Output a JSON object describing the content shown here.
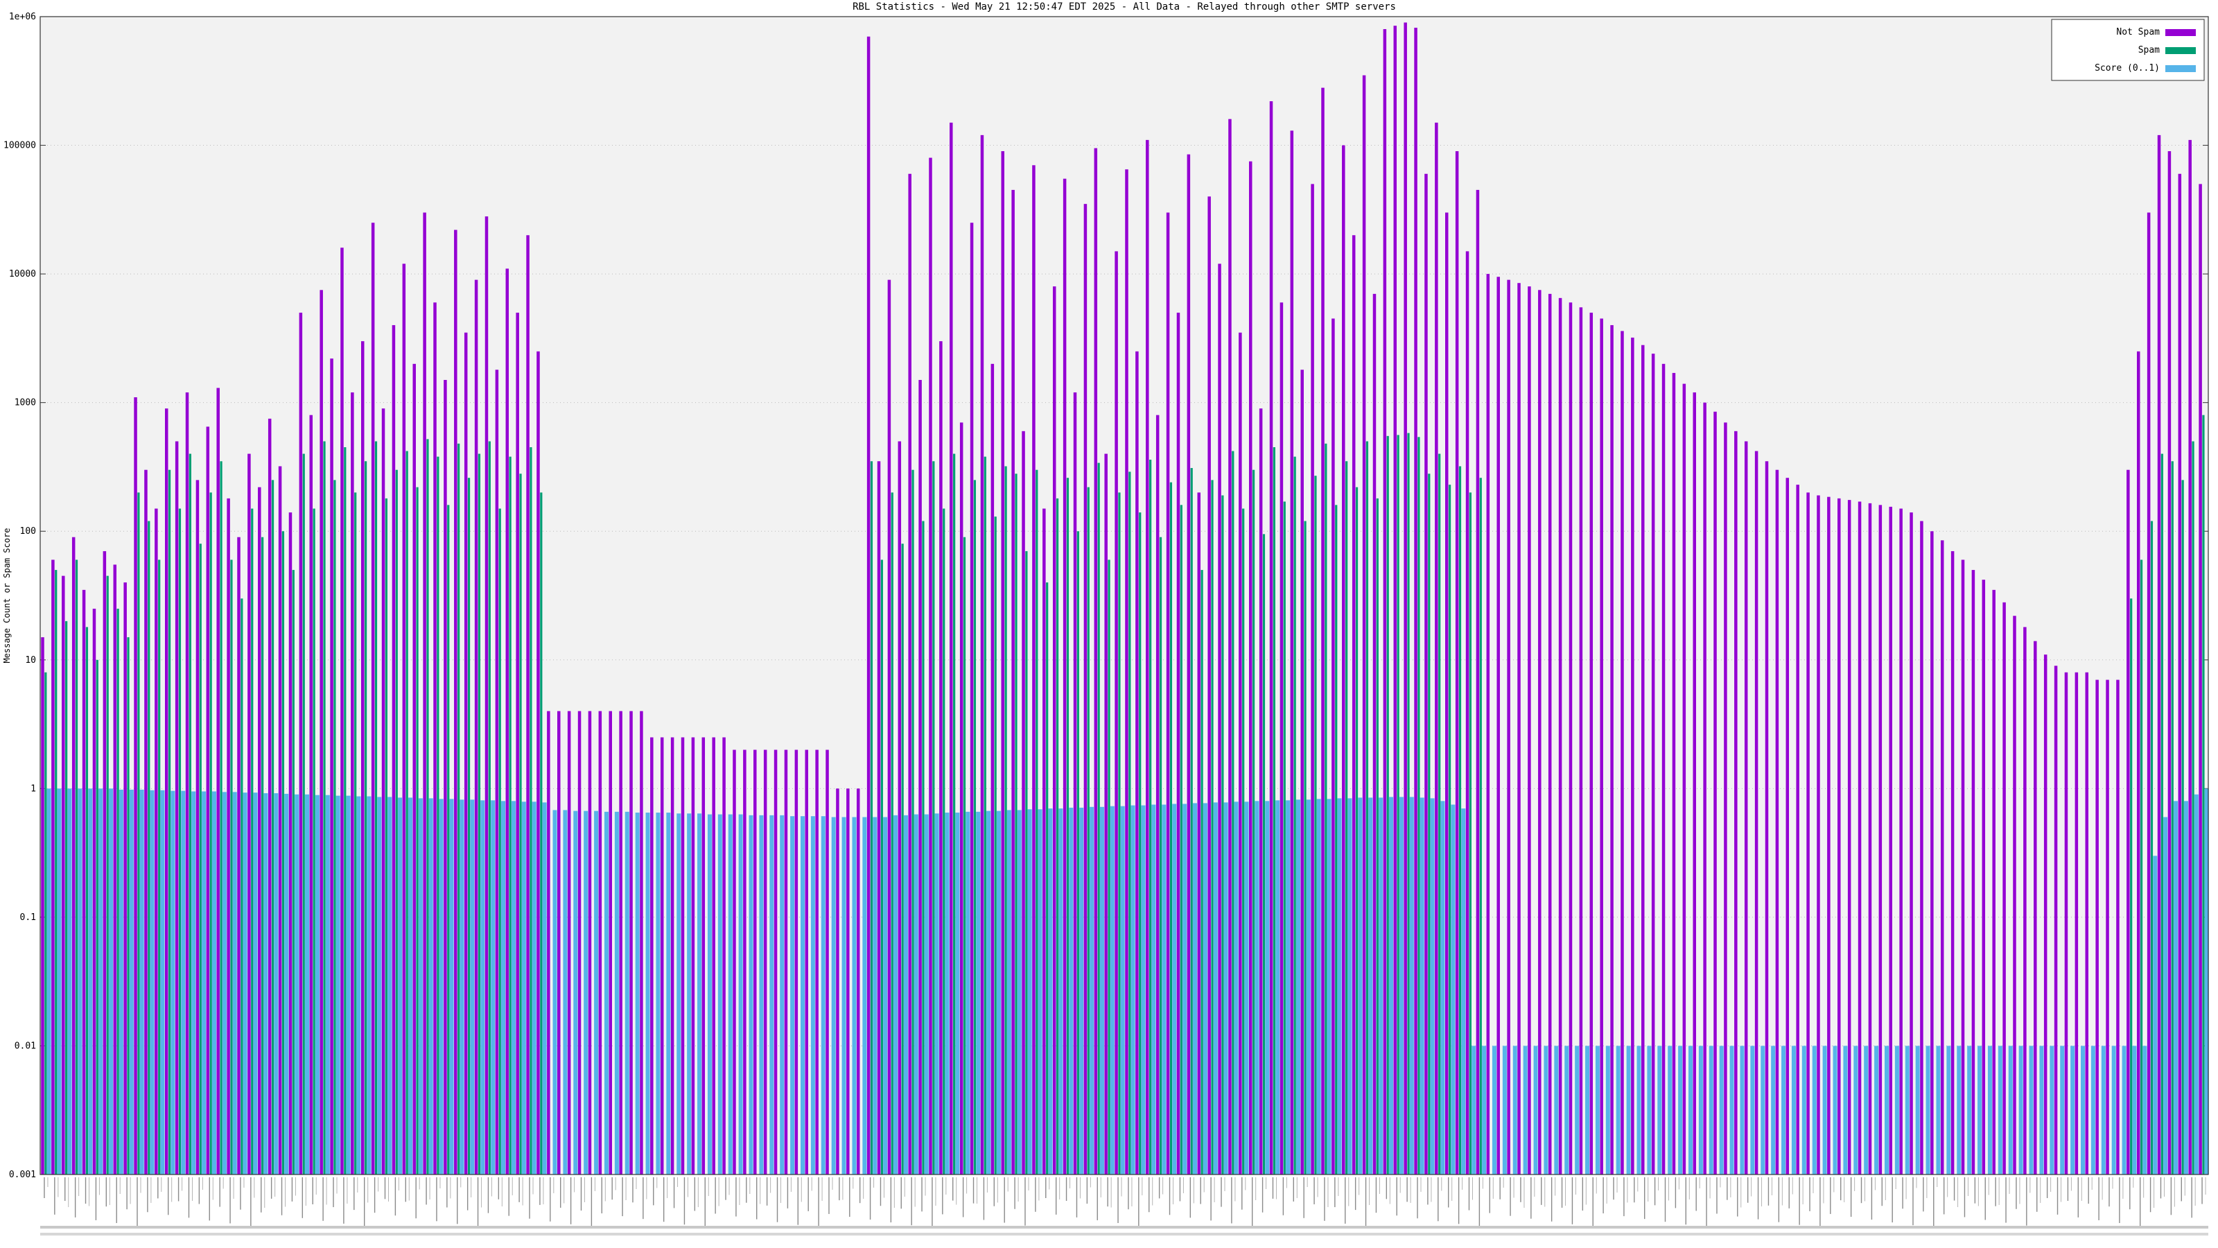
{
  "header": {
    "title": "RBL Statistics - Wed May 21 12:50:47 EDT 2025 - All Data - Relayed through other SMTP servers"
  },
  "chart_data": {
    "type": "bar",
    "title": "RBL Statistics - Wed May 21 12:50:47 EDT 2025 - All Data - Relayed through other SMTP servers",
    "ylabel": "Message Count or Spam Score",
    "xlabel": "",
    "yscale": "log",
    "ylim": [
      0.001,
      1000000
    ],
    "ytick_labels": [
      "0.001",
      "0.01",
      "0.1",
      "1",
      "10",
      "100",
      "1000",
      "10000",
      "100000",
      "1e+06"
    ],
    "grid": true,
    "legend_position": "top-right",
    "legend": [
      {
        "name": "Not Spam",
        "color": "#9400d3"
      },
      {
        "name": "Spam",
        "color": "#009e73"
      },
      {
        "name": "Score (0..1)",
        "color": "#56b4e9"
      }
    ],
    "plot_bg": "#f2f2f2",
    "grid_color": "#bbbbbb",
    "border_color": "#333333",
    "series": [
      {
        "name": "Not Spam",
        "values": [
          15,
          60,
          45,
          90,
          35,
          25,
          70,
          55,
          40,
          1100,
          300,
          150,
          900,
          500,
          1200,
          250,
          650,
          1300,
          180,
          90,
          400,
          220,
          750,
          320,
          140,
          5000,
          800,
          7500,
          2200,
          16000,
          1200,
          3000,
          25000,
          900,
          4000,
          12000,
          2000,
          30000,
          6000,
          1500,
          22000,
          3500,
          9000,
          28000,
          1800,
          11000,
          5000,
          20000,
          2500,
          4,
          4,
          4,
          4,
          4,
          4,
          4,
          4,
          4,
          4,
          2.5,
          2.5,
          2.5,
          2.5,
          2.5,
          2.5,
          2.5,
          2.5,
          2,
          2,
          2,
          2,
          2,
          2,
          2,
          2,
          2,
          2,
          1,
          1,
          1,
          700000,
          350,
          9000,
          500,
          60000,
          1500,
          80000,
          3000,
          150000,
          700,
          25000,
          120000,
          2000,
          90000,
          45000,
          600,
          70000,
          150,
          8000,
          55000,
          1200,
          35000,
          95000,
          400,
          15000,
          65000,
          2500,
          110000,
          800,
          30000,
          5000,
          85000,
          200,
          40000,
          12000,
          160000,
          3500,
          75000,
          900,
          220000,
          6000,
          130000,
          1800,
          50000,
          280000,
          4500,
          100000,
          20000,
          350000,
          7000,
          800000,
          850000,
          900000,
          820000,
          60000,
          150000,
          30000,
          90000,
          15000,
          45000,
          10000,
          9500,
          9000,
          8500,
          8000,
          7500,
          7000,
          6500,
          6000,
          5500,
          5000,
          4500,
          4000,
          3600,
          3200,
          2800,
          2400,
          2000,
          1700,
          1400,
          1200,
          1000,
          850,
          700,
          600,
          500,
          420,
          350,
          300,
          260,
          230,
          200,
          190,
          185,
          180,
          175,
          170,
          165,
          160,
          155,
          150,
          140,
          120,
          100,
          85,
          70,
          60,
          50,
          42,
          35,
          28,
          22,
          18,
          14,
          11,
          9,
          8,
          8,
          8,
          7,
          7,
          7,
          300,
          2500,
          30000,
          120000,
          90000,
          60000,
          110000,
          50000
        ]
      },
      {
        "name": "Spam",
        "values": [
          8,
          50,
          20,
          60,
          18,
          10,
          45,
          25,
          15,
          200,
          120,
          60,
          300,
          150,
          400,
          80,
          200,
          350,
          60,
          30,
          150,
          90,
          250,
          100,
          50,
          400,
          150,
          500,
          250,
          450,
          200,
          350,
          500,
          180,
          300,
          420,
          220,
          520,
          380,
          160,
          480,
          260,
          400,
          500,
          150,
          380,
          280,
          450,
          200,
          0,
          0,
          0,
          0,
          0,
          0,
          0,
          0,
          0,
          0,
          0,
          0,
          0,
          0,
          0,
          0,
          0,
          0,
          0,
          0,
          0,
          0,
          0,
          0,
          0,
          0,
          0,
          0,
          0,
          0,
          0,
          350,
          60,
          200,
          80,
          300,
          120,
          350,
          150,
          400,
          90,
          250,
          380,
          130,
          320,
          280,
          70,
          300,
          40,
          180,
          260,
          100,
          220,
          340,
          60,
          200,
          290,
          140,
          360,
          90,
          240,
          160,
          310,
          50,
          250,
          190,
          420,
          150,
          300,
          95,
          450,
          170,
          380,
          120,
          270,
          480,
          160,
          350,
          220,
          500,
          180,
          550,
          560,
          580,
          540,
          280,
          400,
          230,
          320,
          200,
          260,
          0,
          0,
          0,
          0,
          0,
          0,
          0,
          0,
          0,
          0,
          0,
          0,
          0,
          0,
          0,
          0,
          0,
          0,
          0,
          0,
          0,
          0,
          0,
          0,
          0,
          0,
          0,
          0,
          0,
          0,
          0,
          0,
          0,
          0,
          0,
          0,
          0,
          0,
          0,
          0,
          0,
          0,
          0,
          0,
          0,
          0,
          0,
          0,
          0,
          0,
          0,
          0,
          0,
          0,
          0,
          0,
          0,
          0,
          0,
          0,
          0,
          0,
          30,
          60,
          120,
          400,
          350,
          250,
          500,
          800
        ]
      },
      {
        "name": "Score (0..1)",
        "values": [
          1.0,
          1.0,
          1.0,
          1.0,
          1.0,
          1.0,
          1.0,
          0.98,
          0.98,
          0.98,
          0.97,
          0.97,
          0.96,
          0.96,
          0.95,
          0.95,
          0.95,
          0.94,
          0.94,
          0.93,
          0.93,
          0.92,
          0.92,
          0.91,
          0.9,
          0.9,
          0.89,
          0.89,
          0.88,
          0.88,
          0.87,
          0.87,
          0.86,
          0.86,
          0.85,
          0.85,
          0.84,
          0.84,
          0.83,
          0.83,
          0.82,
          0.82,
          0.81,
          0.81,
          0.8,
          0.8,
          0.79,
          0.79,
          0.78,
          0.68,
          0.68,
          0.67,
          0.67,
          0.67,
          0.66,
          0.66,
          0.66,
          0.65,
          0.65,
          0.65,
          0.65,
          0.64,
          0.64,
          0.64,
          0.63,
          0.63,
          0.63,
          0.63,
          0.62,
          0.62,
          0.62,
          0.62,
          0.61,
          0.61,
          0.61,
          0.61,
          0.6,
          0.6,
          0.6,
          0.6,
          0.6,
          0.6,
          0.62,
          0.62,
          0.63,
          0.63,
          0.64,
          0.65,
          0.65,
          0.66,
          0.66,
          0.67,
          0.67,
          0.68,
          0.68,
          0.69,
          0.69,
          0.7,
          0.7,
          0.71,
          0.71,
          0.72,
          0.72,
          0.73,
          0.73,
          0.74,
          0.74,
          0.75,
          0.75,
          0.76,
          0.76,
          0.77,
          0.77,
          0.78,
          0.78,
          0.79,
          0.79,
          0.8,
          0.8,
          0.81,
          0.81,
          0.82,
          0.82,
          0.83,
          0.83,
          0.84,
          0.84,
          0.85,
          0.85,
          0.85,
          0.86,
          0.86,
          0.86,
          0.85,
          0.84,
          0.8,
          0.75,
          0.7,
          0.01,
          0.01,
          0.01,
          0.01,
          0.01,
          0.01,
          0.01,
          0.01,
          0.01,
          0.01,
          0.01,
          0.01,
          0.01,
          0.01,
          0.01,
          0.01,
          0.01,
          0.01,
          0.01,
          0.01,
          0.01,
          0.01,
          0.01,
          0.01,
          0.01,
          0.01,
          0.01,
          0.01,
          0.01,
          0.01,
          0.01,
          0.01,
          0.01,
          0.01,
          0.01,
          0.01,
          0.01,
          0.01,
          0.01,
          0.01,
          0.01,
          0.01,
          0.01,
          0.01,
          0.01,
          0.01,
          0.01,
          0.01,
          0.01,
          0.01,
          0.01,
          0.01,
          0.01,
          0.01,
          0.01,
          0.01,
          0.01,
          0.01,
          0.01,
          0.01,
          0.01,
          0.01,
          0.01,
          0.01,
          0.01,
          0.01,
          0.3,
          0.6,
          0.8,
          0.8,
          0.9,
          1.0
        ]
      }
    ]
  }
}
